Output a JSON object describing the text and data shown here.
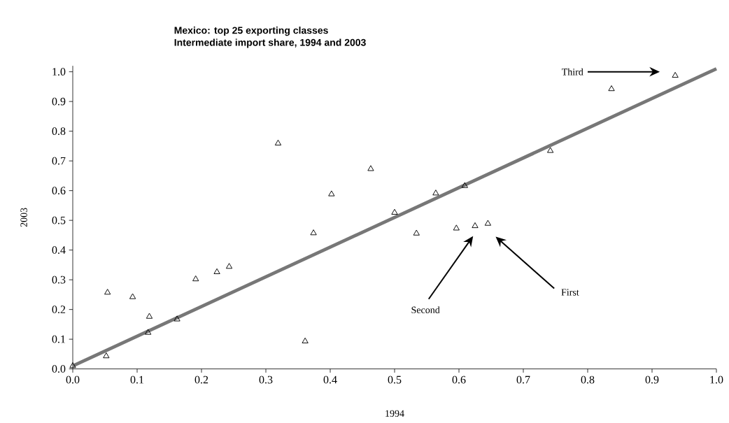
{
  "chart_data": {
    "type": "scatter",
    "title": "Mexico: top 25 exporting classes",
    "subtitle": "Intermediate import share, 1994 and 2003",
    "xlabel": "1994",
    "ylabel": "2003",
    "xlim": [
      0,
      1
    ],
    "ylim": [
      0,
      1.02
    ],
    "xticks": [
      {
        "value": 0,
        "label": "0.0"
      },
      0.1,
      0.2,
      0.3,
      0.4,
      0.5,
      0.6,
      0.7,
      0.8,
      0.9,
      {
        "value": 1,
        "label": "1.0"
      }
    ],
    "yticks": [
      {
        "value": 0,
        "label": "0.0"
      },
      0.1,
      0.2,
      0.3,
      0.4,
      0.5,
      0.6,
      0.7,
      0.8,
      0.9,
      {
        "value": 1,
        "label": "1.0"
      }
    ],
    "annotations": [
      "Third",
      "Second",
      "First"
    ],
    "series": [
      {
        "type": "line",
        "color": "#777777",
        "marker": "none",
        "x": [
          0,
          1
        ],
        "values": [
          0.01,
          1.01
        ]
      },
      {
        "color": "#000000",
        "marker": "triangle",
        "x": [
          0.0,
          0.052,
          0.054,
          0.093,
          0.119,
          0.117,
          0.162,
          0.191,
          0.224,
          0.243,
          0.361,
          0.319,
          0.463,
          0.402,
          0.374,
          0.5,
          0.534,
          0.564,
          0.609,
          0.596,
          0.625,
          0.645,
          0.742,
          0.837,
          0.936
        ],
        "values": [
          0.01,
          0.043,
          0.257,
          0.242,
          0.176,
          0.122,
          0.167,
          0.302,
          0.326,
          0.344,
          0.093,
          0.759,
          0.673,
          0.588,
          0.457,
          0.526,
          0.456,
          0.591,
          0.616,
          0.473,
          0.481,
          0.489,
          0.734,
          0.942,
          0.987
        ]
      }
    ]
  }
}
